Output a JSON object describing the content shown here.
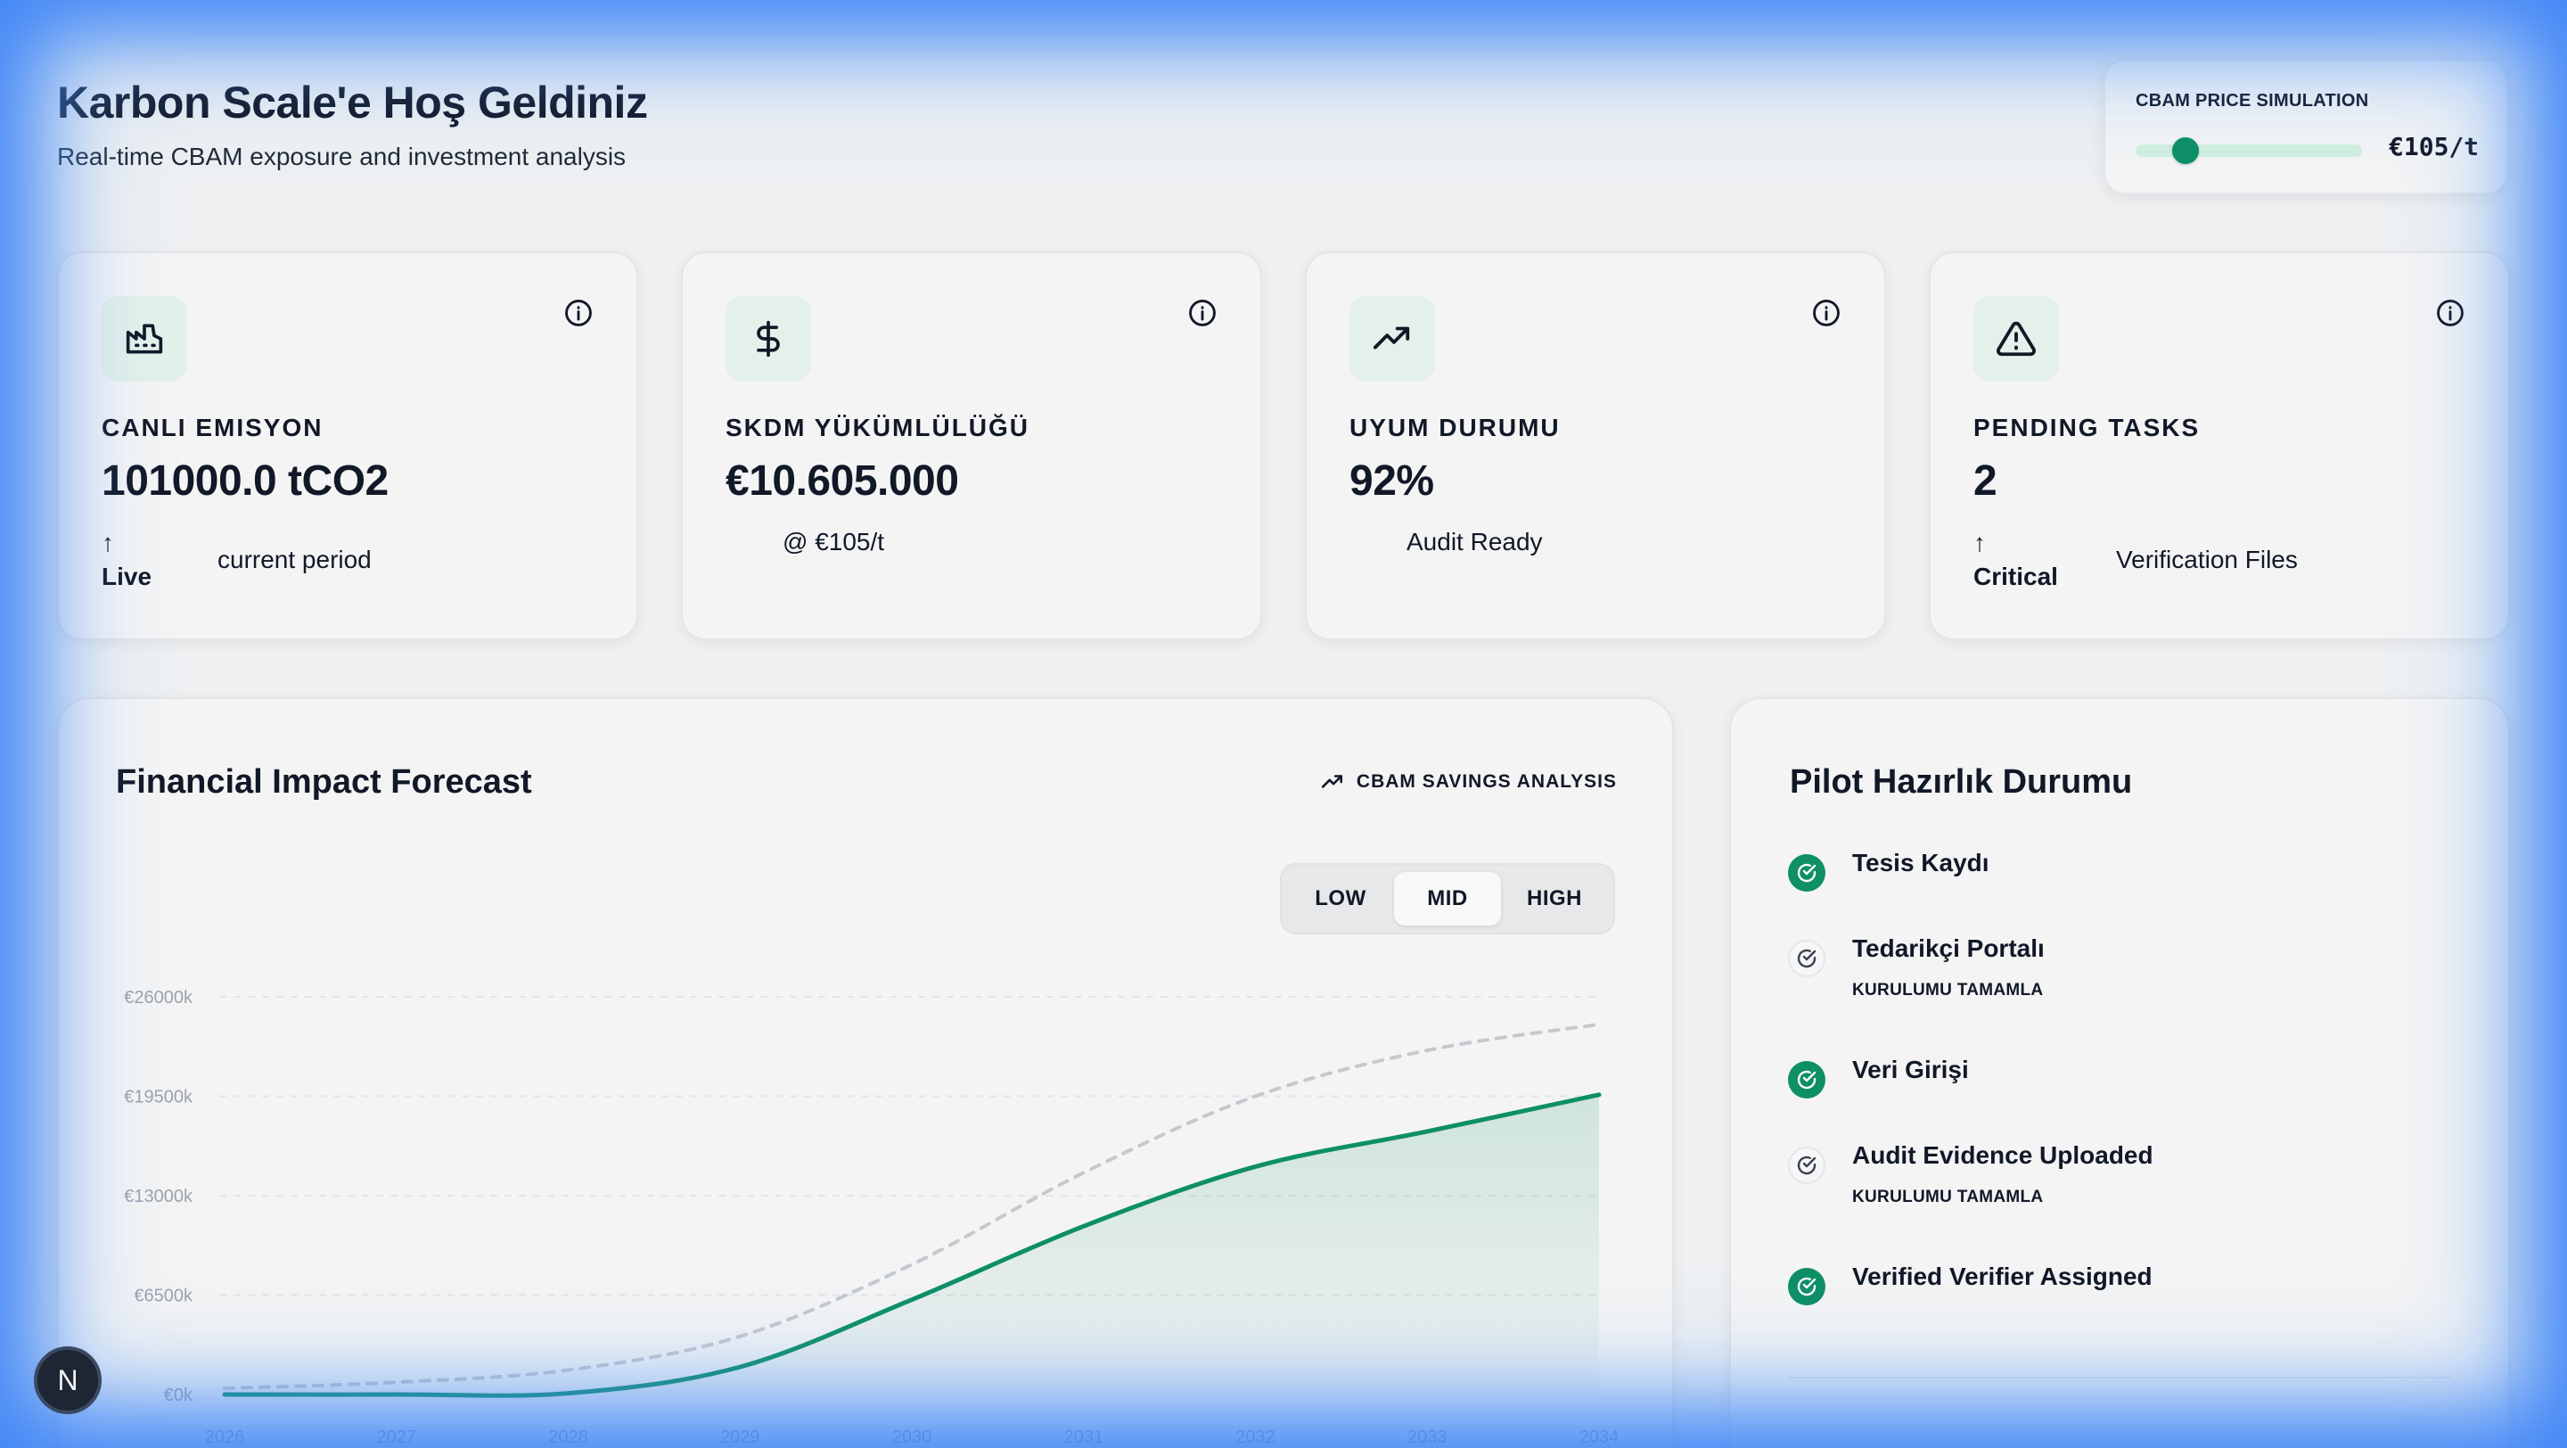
{
  "header": {
    "title": "Karbon Scale'e Hoş Geldiniz",
    "subtitle": "Real-time CBAM exposure and investment analysis"
  },
  "price_sim": {
    "label": "CBAM PRICE SIMULATION",
    "value": "€105/t",
    "slider_level": 0.22
  },
  "kpis": [
    {
      "icon": "factory-icon",
      "label": "CANLI EMISYON",
      "value": "101000.0 tCO2",
      "trend_arrow": "↑",
      "trend_label": "Live",
      "note": "current period"
    },
    {
      "icon": "dollar-icon",
      "label": "SKDM YÜKÜMLÜLÜĞÜ",
      "value": "€10.605.000",
      "note": "@ €105/t"
    },
    {
      "icon": "trending-up-icon",
      "label": "UYUM DURUMU",
      "value": "92%",
      "note": "Audit Ready"
    },
    {
      "icon": "alert-triangle-icon",
      "label": "PENDING TASKS",
      "value": "2",
      "trend_arrow": "↑",
      "trend_label": "Critical",
      "note": "Verification Files"
    }
  ],
  "forecast": {
    "title": "Financial Impact Forecast",
    "badge": "CBAM SAVINGS ANALYSIS",
    "scenarios": [
      "LOW",
      "MID",
      "HIGH"
    ],
    "active_scenario": "MID"
  },
  "chart_data": {
    "type": "area",
    "x": [
      2026,
      2027,
      2028,
      2029,
      2030,
      2031,
      2032,
      2033,
      2034
    ],
    "y_ticks": [
      "€0k",
      "€6500k",
      "€13000k",
      "€19500k",
      "€26000k"
    ],
    "ylim": [
      0,
      26000
    ],
    "grid": true,
    "series": [
      {
        "values": [
          0,
          0,
          80,
          1800,
          6200,
          11000,
          14900,
          17200,
          19600
        ],
        "style": "solid",
        "color": "#0e8f66",
        "fill": true
      },
      {
        "values": [
          400,
          800,
          1600,
          3800,
          8500,
          14500,
          19500,
          22500,
          24200
        ],
        "style": "dashed",
        "color": "#c5c9cf",
        "fill": false
      }
    ]
  },
  "pilot": {
    "title": "Pilot Hazırlık Durumu",
    "items": [
      {
        "label": "Tesis Kaydı",
        "done": true,
        "sub": ""
      },
      {
        "label": "Tedarikçi Portalı",
        "done": false,
        "sub": "KURULUMU TAMAMLA"
      },
      {
        "label": "Veri Girişi",
        "done": true,
        "sub": ""
      },
      {
        "label": "Audit Evidence Uploaded",
        "done": false,
        "sub": "KURULUMU TAMAMLA"
      },
      {
        "label": "Verified Verifier Assigned",
        "done": true,
        "sub": ""
      }
    ]
  },
  "badge": {
    "letter": "N"
  },
  "colors": {
    "accent": "#0e8f66",
    "accent_soft": "#e3f1ea",
    "glow": "#3b82f6"
  }
}
